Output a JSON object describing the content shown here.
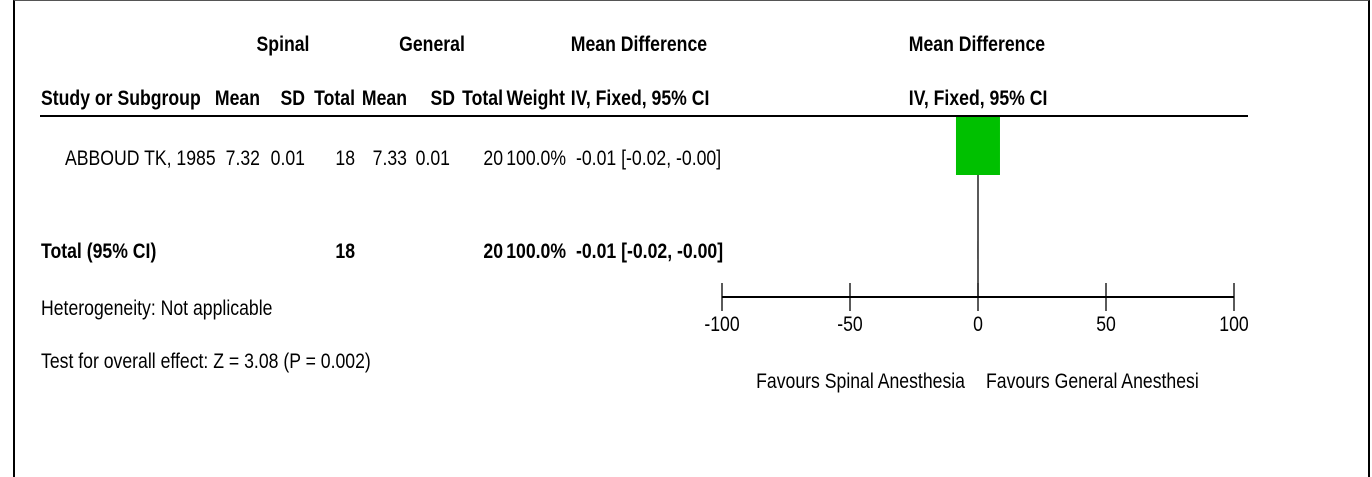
{
  "header": {
    "group_spinal": "Spinal",
    "group_general": "General",
    "effect_header": "Mean Difference",
    "effect_method": "IV, Fixed, 95% CI",
    "plot_header": "Mean Difference",
    "plot_method": "IV, Fixed, 95% CI",
    "col_study": "Study or Subgroup",
    "col_mean_1": "Mean",
    "col_sd_1": "SD",
    "col_total_1": "Total",
    "col_mean_2": "Mean",
    "col_sd_2": "SD",
    "col_total_2": "Total",
    "col_weight": "Weight"
  },
  "studies": [
    {
      "name": "ABBOUD TK, 1985",
      "mean_1": "7.32",
      "sd_1": "0.01",
      "total_1": "18",
      "mean_2": "7.33",
      "sd_2": "0.01",
      "total_2": "20",
      "weight": "100.0%",
      "ci_text": "-0.01 [-0.02, -0.00]"
    }
  ],
  "total_row": {
    "label": "Total (95% CI)",
    "total_1": "18",
    "total_2": "20",
    "weight": "100.0%",
    "ci_text": "-0.01 [-0.02, -0.00]"
  },
  "footer": {
    "heterogeneity": "Heterogeneity: Not applicable",
    "overall_effect": "Test for overall effect: Z = 3.08 (P = 0.002)"
  },
  "colors": {
    "study_marker": "#00c000",
    "axis": "#000000"
  },
  "chart_data": {
    "type": "forest",
    "x_ticks": [
      -100,
      -50,
      0,
      50,
      100
    ],
    "x_tick_labels": [
      "-100",
      "-50",
      "0",
      "50",
      "100"
    ],
    "xlim": [
      -100,
      100
    ],
    "label_left": "Favours Spinal Anesthesia",
    "label_right": "Favours General Anesthesi",
    "studies": [
      {
        "name": "ABBOUD TK, 1985",
        "estimate": -0.01,
        "ci_low": -0.02,
        "ci_high": -0.0,
        "weight": 100.0
      }
    ],
    "pooled": {
      "estimate": -0.01,
      "ci_low": -0.02,
      "ci_high": -0.0
    }
  }
}
